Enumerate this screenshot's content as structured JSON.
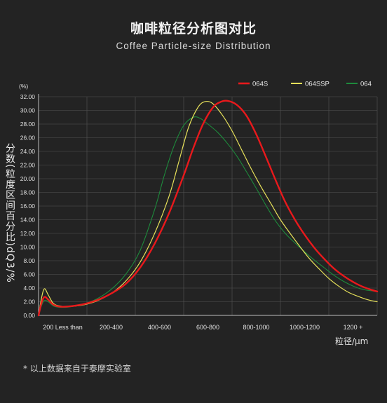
{
  "title_cn": "咖啡粒径分析图对比",
  "title_en": "Coffee Particle-size Distribution",
  "footnote": "* 以上数据来自于泰摩实验室",
  "chart_data": {
    "type": "line",
    "ylabel": "分数(粒度区间百分比)dQ3/%",
    "xlabel": "粒径/μm",
    "yunit": "(%)",
    "ylim": [
      0,
      32
    ],
    "yticks": [
      "0.00",
      "2.00",
      "4.00",
      "6.00",
      "8.00",
      "10.00",
      "12.00",
      "14.00",
      "16.00",
      "18.00",
      "20.00",
      "22.00",
      "24.00",
      "26.00",
      "28.00",
      "30.00",
      "32.00"
    ],
    "categories": [
      "200 Less than",
      "200-400",
      "400-600",
      "600-800",
      "800-1000",
      "1000-1200",
      "1200 +"
    ],
    "grid": true,
    "legend_position": "top-right",
    "x_range": [
      0,
      7
    ],
    "series": [
      {
        "name": "064S",
        "color": "#e8191c",
        "x": [
          0,
          0.06,
          0.12,
          0.2,
          0.3,
          0.42,
          0.6,
          0.9,
          1.2,
          1.5,
          1.8,
          2.1,
          2.4,
          2.7,
          3.0,
          3.2,
          3.4,
          3.6,
          3.75,
          3.9,
          4.1,
          4.3,
          4.5,
          4.7,
          4.9,
          5.1,
          5.3,
          5.5,
          5.7,
          5.9,
          6.1,
          6.3,
          6.5,
          6.7,
          6.9,
          7.0
        ],
        "y": [
          0,
          1.8,
          2.7,
          2.3,
          1.6,
          1.3,
          1.3,
          1.6,
          2.2,
          3.2,
          4.6,
          7.0,
          10.5,
          15.0,
          20.5,
          24.5,
          28.0,
          30.4,
          31.2,
          31.4,
          30.8,
          29.2,
          26.5,
          23.2,
          19.8,
          16.6,
          14.0,
          11.8,
          9.9,
          8.3,
          6.9,
          5.8,
          4.9,
          4.2,
          3.7,
          3.5
        ]
      },
      {
        "name": "064SSP",
        "color": "#e6e05a",
        "x": [
          0,
          0.06,
          0.12,
          0.2,
          0.3,
          0.42,
          0.6,
          0.9,
          1.2,
          1.5,
          1.8,
          2.1,
          2.4,
          2.7,
          2.9,
          3.1,
          3.3,
          3.45,
          3.6,
          3.8,
          4.0,
          4.2,
          4.4,
          4.6,
          4.8,
          5.0,
          5.2,
          5.4,
          5.6,
          5.8,
          6.0,
          6.2,
          6.4,
          6.6,
          6.8,
          7.0
        ],
        "y": [
          0,
          2.5,
          3.9,
          3.0,
          1.8,
          1.4,
          1.3,
          1.5,
          2.1,
          3.2,
          5.0,
          7.8,
          12.0,
          17.5,
          22.5,
          27.5,
          30.5,
          31.3,
          31.0,
          29.3,
          27.0,
          24.2,
          21.4,
          18.8,
          16.4,
          14.0,
          12.0,
          10.1,
          8.3,
          6.8,
          5.4,
          4.3,
          3.4,
          2.8,
          2.3,
          2.0
        ]
      },
      {
        "name": "064",
        "color": "#1e8a3c",
        "x": [
          0,
          0.06,
          0.12,
          0.2,
          0.3,
          0.42,
          0.6,
          0.9,
          1.2,
          1.5,
          1.8,
          2.1,
          2.4,
          2.6,
          2.8,
          3.0,
          3.2,
          3.35,
          3.5,
          3.7,
          3.9,
          4.1,
          4.3,
          4.5,
          4.7,
          4.9,
          5.1,
          5.3,
          5.5,
          5.7,
          5.9,
          6.1,
          6.3,
          6.5,
          6.7,
          7.0
        ],
        "y": [
          0,
          1.4,
          2.2,
          2.0,
          1.4,
          1.2,
          1.2,
          1.6,
          2.4,
          3.8,
          6.0,
          9.5,
          15.5,
          20.5,
          24.8,
          27.8,
          29.0,
          28.8,
          28.0,
          26.8,
          25.2,
          23.3,
          21.0,
          18.6,
          16.1,
          13.8,
          12.0,
          10.6,
          9.3,
          8.1,
          7.0,
          5.9,
          5.0,
          4.3,
          3.8,
          3.5
        ]
      }
    ]
  }
}
